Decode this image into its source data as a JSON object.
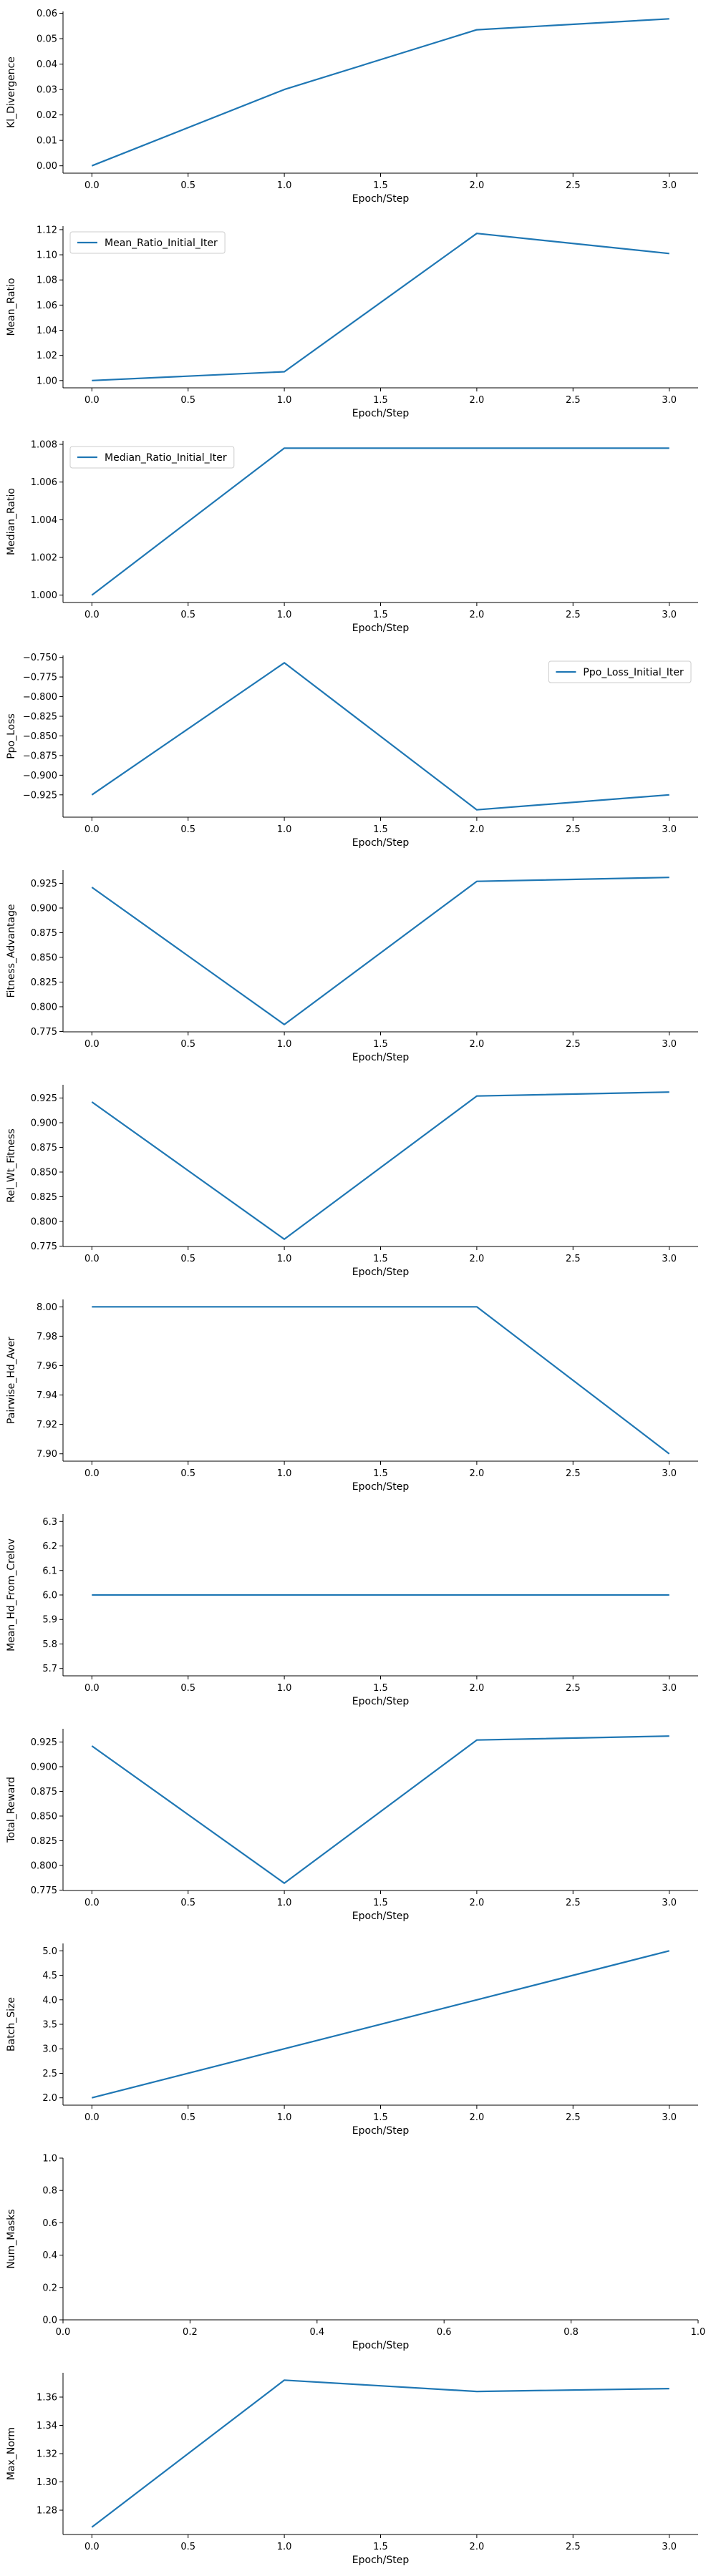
{
  "chart_data": [
    {
      "type": "line",
      "xlabel": "Epoch/Step",
      "ylabel": "Kl_Divergence",
      "x": [
        0,
        1,
        2,
        3
      ],
      "y": [
        0.0,
        0.03,
        0.0535,
        0.0578
      ],
      "xlim": [
        -0.15,
        3.15
      ],
      "ylim": [
        -0.0029,
        0.0607
      ],
      "xticks": [
        "0.0",
        "0.5",
        "1.0",
        "1.5",
        "2.0",
        "2.5",
        "3.0"
      ],
      "yticks": [
        "0.00",
        "0.01",
        "0.02",
        "0.03",
        "0.04",
        "0.05",
        "0.06"
      ],
      "legend": null,
      "color": "#1f77b4"
    },
    {
      "type": "line",
      "xlabel": "Epoch/Step",
      "ylabel": "Mean_Ratio",
      "x": [
        0,
        1,
        2,
        3
      ],
      "y": [
        1.0,
        1.007,
        1.117,
        1.101
      ],
      "xlim": [
        -0.15,
        3.15
      ],
      "ylim": [
        0.9942,
        1.1228
      ],
      "xticks": [
        "0.0",
        "0.5",
        "1.0",
        "1.5",
        "2.0",
        "2.5",
        "3.0"
      ],
      "yticks": [
        "1.00",
        "1.02",
        "1.04",
        "1.06",
        "1.08",
        "1.10",
        "1.12"
      ],
      "legend": {
        "label": "Mean_Ratio_Initial_Iter",
        "position": "upper left"
      },
      "color": "#1f77b4"
    },
    {
      "type": "line",
      "xlabel": "Epoch/Step",
      "ylabel": "Median_Ratio",
      "x": [
        0,
        1,
        2,
        3
      ],
      "y": [
        1.0,
        1.0078,
        1.0078,
        1.0078
      ],
      "xlim": [
        -0.15,
        3.15
      ],
      "ylim": [
        0.99961,
        1.00819
      ],
      "xticks": [
        "0.0",
        "0.5",
        "1.0",
        "1.5",
        "2.0",
        "2.5",
        "3.0"
      ],
      "yticks": [
        "1.000",
        "1.002",
        "1.004",
        "1.006",
        "1.008"
      ],
      "legend": {
        "label": "Median_Ratio_Initial_Iter",
        "position": "upper left"
      },
      "color": "#1f77b4"
    },
    {
      "type": "line",
      "xlabel": "Epoch/Step",
      "ylabel": "Ppo_Loss",
      "x": [
        0,
        1,
        2,
        3
      ],
      "y": [
        -0.925,
        -0.757,
        -0.944,
        -0.925
      ],
      "xlim": [
        -0.15,
        3.15
      ],
      "ylim": [
        -0.9534,
        -0.7476
      ],
      "xticks": [
        "0.0",
        "0.5",
        "1.0",
        "1.5",
        "2.0",
        "2.5",
        "3.0"
      ],
      "yticks": [
        "−0.925",
        "−0.900",
        "−0.875",
        "−0.850",
        "−0.825",
        "−0.800",
        "−0.775",
        "−0.750"
      ],
      "legend": {
        "label": "Ppo_Loss_Initial_Iter",
        "position": "upper right"
      },
      "color": "#1f77b4"
    },
    {
      "type": "line",
      "xlabel": "Epoch/Step",
      "ylabel": "Fitness_Advantage",
      "x": [
        0,
        1,
        2,
        3
      ],
      "y": [
        0.921,
        0.782,
        0.927,
        0.931
      ],
      "xlim": [
        -0.15,
        3.15
      ],
      "ylim": [
        0.7746,
        0.9384
      ],
      "xticks": [
        "0.0",
        "0.5",
        "1.0",
        "1.5",
        "2.0",
        "2.5",
        "3.0"
      ],
      "yticks": [
        "0.775",
        "0.800",
        "0.825",
        "0.850",
        "0.875",
        "0.900",
        "0.925"
      ],
      "legend": null,
      "color": "#1f77b4"
    },
    {
      "type": "line",
      "xlabel": "Epoch/Step",
      "ylabel": "Rel_Wt_Fitness",
      "x": [
        0,
        1,
        2,
        3
      ],
      "y": [
        0.921,
        0.782,
        0.927,
        0.931
      ],
      "xlim": [
        -0.15,
        3.15
      ],
      "ylim": [
        0.7746,
        0.9384
      ],
      "xticks": [
        "0.0",
        "0.5",
        "1.0",
        "1.5",
        "2.0",
        "2.5",
        "3.0"
      ],
      "yticks": [
        "0.775",
        "0.800",
        "0.825",
        "0.850",
        "0.875",
        "0.900",
        "0.925"
      ],
      "legend": null,
      "color": "#1f77b4"
    },
    {
      "type": "line",
      "xlabel": "Epoch/Step",
      "ylabel": "Pairwise_Hd_Aver",
      "x": [
        0,
        1,
        2,
        3
      ],
      "y": [
        8.0,
        8.0,
        8.0,
        7.9
      ],
      "xlim": [
        -0.15,
        3.15
      ],
      "ylim": [
        7.895,
        8.005
      ],
      "xticks": [
        "0.0",
        "0.5",
        "1.0",
        "1.5",
        "2.0",
        "2.5",
        "3.0"
      ],
      "yticks": [
        "7.90",
        "7.92",
        "7.94",
        "7.96",
        "7.98",
        "8.00"
      ],
      "legend": null,
      "color": "#1f77b4"
    },
    {
      "type": "line",
      "xlabel": "Epoch/Step",
      "ylabel": "Mean_Hd_From_Crelov",
      "x": [
        0,
        1,
        2,
        3
      ],
      "y": [
        6.0,
        6.0,
        6.0,
        6.0
      ],
      "xlim": [
        -0.15,
        3.15
      ],
      "ylim": [
        5.67,
        6.33
      ],
      "xticks": [
        "0.0",
        "0.5",
        "1.0",
        "1.5",
        "2.0",
        "2.5",
        "3.0"
      ],
      "yticks": [
        "5.7",
        "5.8",
        "5.9",
        "6.0",
        "6.1",
        "6.2",
        "6.3"
      ],
      "legend": null,
      "color": "#1f77b4"
    },
    {
      "type": "line",
      "xlabel": "Epoch/Step",
      "ylabel": "Total_Reward",
      "x": [
        0,
        1,
        2,
        3
      ],
      "y": [
        0.921,
        0.782,
        0.927,
        0.931
      ],
      "xlim": [
        -0.15,
        3.15
      ],
      "ylim": [
        0.7746,
        0.9384
      ],
      "xticks": [
        "0.0",
        "0.5",
        "1.0",
        "1.5",
        "2.0",
        "2.5",
        "3.0"
      ],
      "yticks": [
        "0.775",
        "0.800",
        "0.825",
        "0.850",
        "0.875",
        "0.900",
        "0.925"
      ],
      "legend": null,
      "color": "#1f77b4"
    },
    {
      "type": "line",
      "xlabel": "Epoch/Step",
      "ylabel": "Batch_Size",
      "x": [
        0,
        1,
        2,
        3
      ],
      "y": [
        2.0,
        3.0,
        4.0,
        5.0
      ],
      "xlim": [
        -0.15,
        3.15
      ],
      "ylim": [
        1.85,
        5.15
      ],
      "xticks": [
        "0.0",
        "0.5",
        "1.0",
        "1.5",
        "2.0",
        "2.5",
        "3.0"
      ],
      "yticks": [
        "2.0",
        "2.5",
        "3.0",
        "3.5",
        "4.0",
        "4.5",
        "5.0"
      ],
      "legend": null,
      "color": "#1f77b4"
    },
    {
      "type": "line",
      "xlabel": "Epoch/Step",
      "ylabel": "Num_Masks",
      "x": [],
      "y": [],
      "xlim": [
        0,
        1
      ],
      "ylim": [
        0,
        1
      ],
      "xticks": [
        "0.0",
        "0.2",
        "0.4",
        "0.6",
        "0.8",
        "1.0"
      ],
      "yticks": [
        "0.0",
        "0.2",
        "0.4",
        "0.6",
        "0.8",
        "1.0"
      ],
      "legend": null,
      "color": "#1f77b4"
    },
    {
      "type": "line",
      "xlabel": "Epoch/Step",
      "ylabel": "Max_Norm",
      "x": [
        0,
        1,
        2,
        3
      ],
      "y": [
        1.268,
        1.372,
        1.364,
        1.366
      ],
      "xlim": [
        -0.15,
        3.15
      ],
      "ylim": [
        1.2628,
        1.3772
      ],
      "xticks": [
        "0.0",
        "0.5",
        "1.0",
        "1.5",
        "2.0",
        "2.5",
        "3.0"
      ],
      "yticks": [
        "1.28",
        "1.30",
        "1.32",
        "1.34",
        "1.36"
      ],
      "legend": null,
      "color": "#1f77b4"
    }
  ]
}
